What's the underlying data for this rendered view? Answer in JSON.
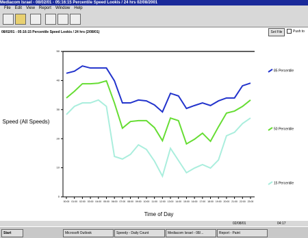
{
  "window": {
    "title": "Mediacom Israel - 08/02/01 - 05:16:15 Percentile Speed Lookis / 24 hrs 02/08/2001",
    "menu": [
      "File",
      "Edit",
      "View",
      "Report",
      "Window",
      "Help"
    ]
  },
  "header": {
    "text": "08/02/01 - 05:16:15 Percentile Speed Lookis / 24 hrs (2/08/01)",
    "button": "Set File",
    "checkbox": "Push to"
  },
  "status": {
    "date": "02/08/01",
    "time": "04:17"
  },
  "taskbar": {
    "start": "Start",
    "items": [
      "Microsoft Outlook",
      "Speedy - Daily Count",
      "Mediacom Israel - 08/...",
      "Report - Paint"
    ]
  },
  "chart_data": {
    "type": "line",
    "y_label": "Speed (All Speeds)",
    "x_label": "Time of Day",
    "categories": [
      "00:00",
      "01:00",
      "02:00",
      "03:00",
      "04:00",
      "05:00",
      "06:00",
      "07:00",
      "08:00",
      "09:00",
      "10:00",
      "11:00",
      "12:00",
      "13:00",
      "14:00",
      "15:00",
      "16:00",
      "17:00",
      "18:00",
      "19:00",
      "20:00",
      "21:00",
      "22:00",
      "23:00"
    ],
    "ylim": [
      0,
      50
    ],
    "yticks": [
      0,
      10,
      20,
      30,
      40,
      50
    ],
    "series": [
      {
        "name": "85 Percentile",
        "color": "#2233cc",
        "values": [
          42.5,
          43.2,
          45.0,
          44.3,
          44.3,
          44.3,
          39.9,
          32.3,
          32.3,
          33.3,
          33.0,
          31.6,
          29.2,
          35.6,
          34.7,
          30.4,
          31.4,
          32.3,
          31.4,
          33.0,
          34.0,
          34.0,
          38.2,
          39.1
        ]
      },
      {
        "name": "50 Percentile",
        "color": "#66dd33",
        "values": [
          34.0,
          36.3,
          38.9,
          38.9,
          39.1,
          39.9,
          32.3,
          23.6,
          25.9,
          26.2,
          26.2,
          23.8,
          19.3,
          27.1,
          26.2,
          18.2,
          19.8,
          21.9,
          19.1,
          24.1,
          28.8,
          29.5,
          31.1,
          33.3
        ]
      },
      {
        "name": "15 Percentile",
        "color": "#aaeedd",
        "values": [
          28.3,
          31.1,
          32.3,
          32.3,
          33.3,
          31.1,
          13.9,
          13.0,
          14.6,
          17.9,
          16.3,
          12.3,
          7.1,
          16.7,
          12.5,
          8.3,
          9.9,
          11.1,
          9.9,
          12.7,
          21.0,
          22.2,
          25.2,
          27.1
        ]
      }
    ]
  }
}
